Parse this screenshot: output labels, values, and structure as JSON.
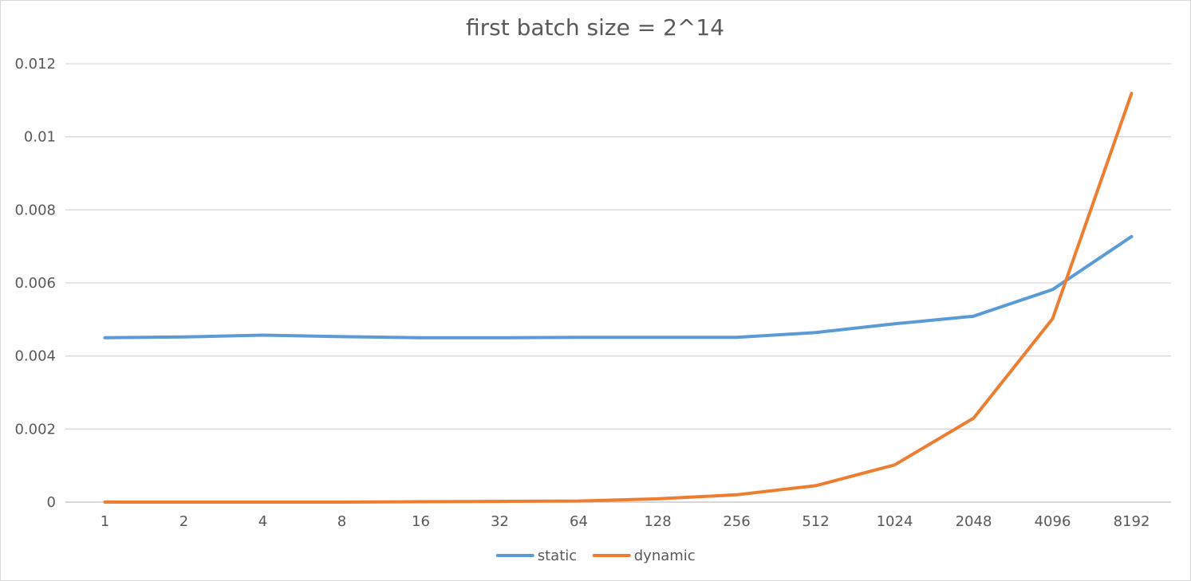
{
  "chart_data": {
    "type": "line",
    "title": "first batch size = 2^14",
    "xlabel": "",
    "ylabel": "",
    "categories": [
      "1",
      "2",
      "4",
      "8",
      "16",
      "32",
      "64",
      "128",
      "256",
      "512",
      "1024",
      "2048",
      "4096",
      "8192"
    ],
    "y_ticks": [
      "0",
      "0.002",
      "0.004",
      "0.006",
      "0.008",
      "0.01",
      "0.012"
    ],
    "ylim": [
      0,
      0.012
    ],
    "grid": true,
    "legend_position": "bottom",
    "series": [
      {
        "name": "static",
        "color": "#5b9bd5",
        "values": [
          0.0045,
          0.00452,
          0.00457,
          0.00453,
          0.0045,
          0.0045,
          0.00451,
          0.00451,
          0.00451,
          0.00464,
          0.00488,
          0.00509,
          0.00582,
          0.00727
        ]
      },
      {
        "name": "dynamic",
        "color": "#ed7d31",
        "values": [
          0.0,
          0.0,
          0.0,
          0.0,
          1e-05,
          2e-05,
          3e-05,
          9e-05,
          0.0002,
          0.00045,
          0.00102,
          0.0023,
          0.00502,
          0.01119
        ]
      }
    ]
  }
}
